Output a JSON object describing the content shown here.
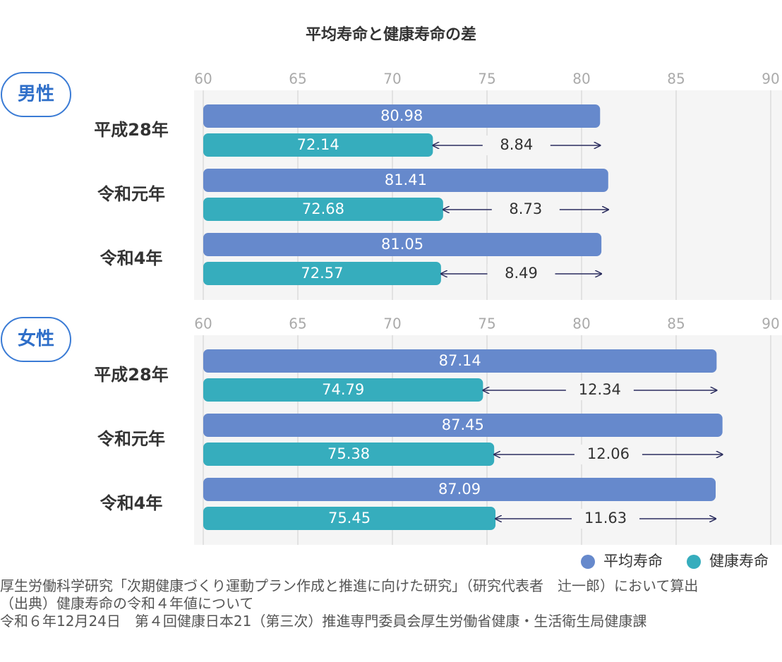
{
  "title": "平均寿命と健康寿命の差",
  "chart_data": [
    {
      "type": "bar",
      "orientation": "horizontal",
      "label": "男性",
      "categories": [
        "平成28年",
        "令和元年",
        "令和4年"
      ],
      "series": [
        {
          "name": "平均寿命",
          "color": "#6689cc",
          "values": [
            80.98,
            81.41,
            81.05
          ]
        },
        {
          "name": "健康寿命",
          "color": "#36adbd",
          "values": [
            72.14,
            72.68,
            72.57
          ]
        }
      ],
      "gaps": [
        8.84,
        8.73,
        8.49
      ],
      "xlim": [
        60,
        90
      ],
      "xticks": [
        60,
        65,
        70,
        75,
        80,
        85,
        90
      ],
      "grid": true
    },
    {
      "type": "bar",
      "orientation": "horizontal",
      "label": "女性",
      "categories": [
        "平成28年",
        "令和元年",
        "令和4年"
      ],
      "series": [
        {
          "name": "平均寿命",
          "color": "#6689cc",
          "values": [
            87.14,
            87.45,
            87.09
          ]
        },
        {
          "name": "健康寿命",
          "color": "#36adbd",
          "values": [
            74.79,
            75.38,
            75.45
          ]
        }
      ],
      "gaps": [
        12.34,
        12.06,
        11.63
      ],
      "xlim": [
        60,
        90
      ],
      "xticks": [
        60,
        65,
        70,
        75,
        80,
        85,
        90
      ],
      "grid": true
    }
  ],
  "source": [
    "厚生労働科学研究「次期健康づくり運動プラン作成と推進に向けた研究」（研究代表者　辻一郎）において算出",
    "（出典）健康寿命の令和４年値について",
    "令和６年12月24日　第４回健康日本21（第三次）推進専門委員会厚生労働省健康・生活衛生局健康課"
  ]
}
